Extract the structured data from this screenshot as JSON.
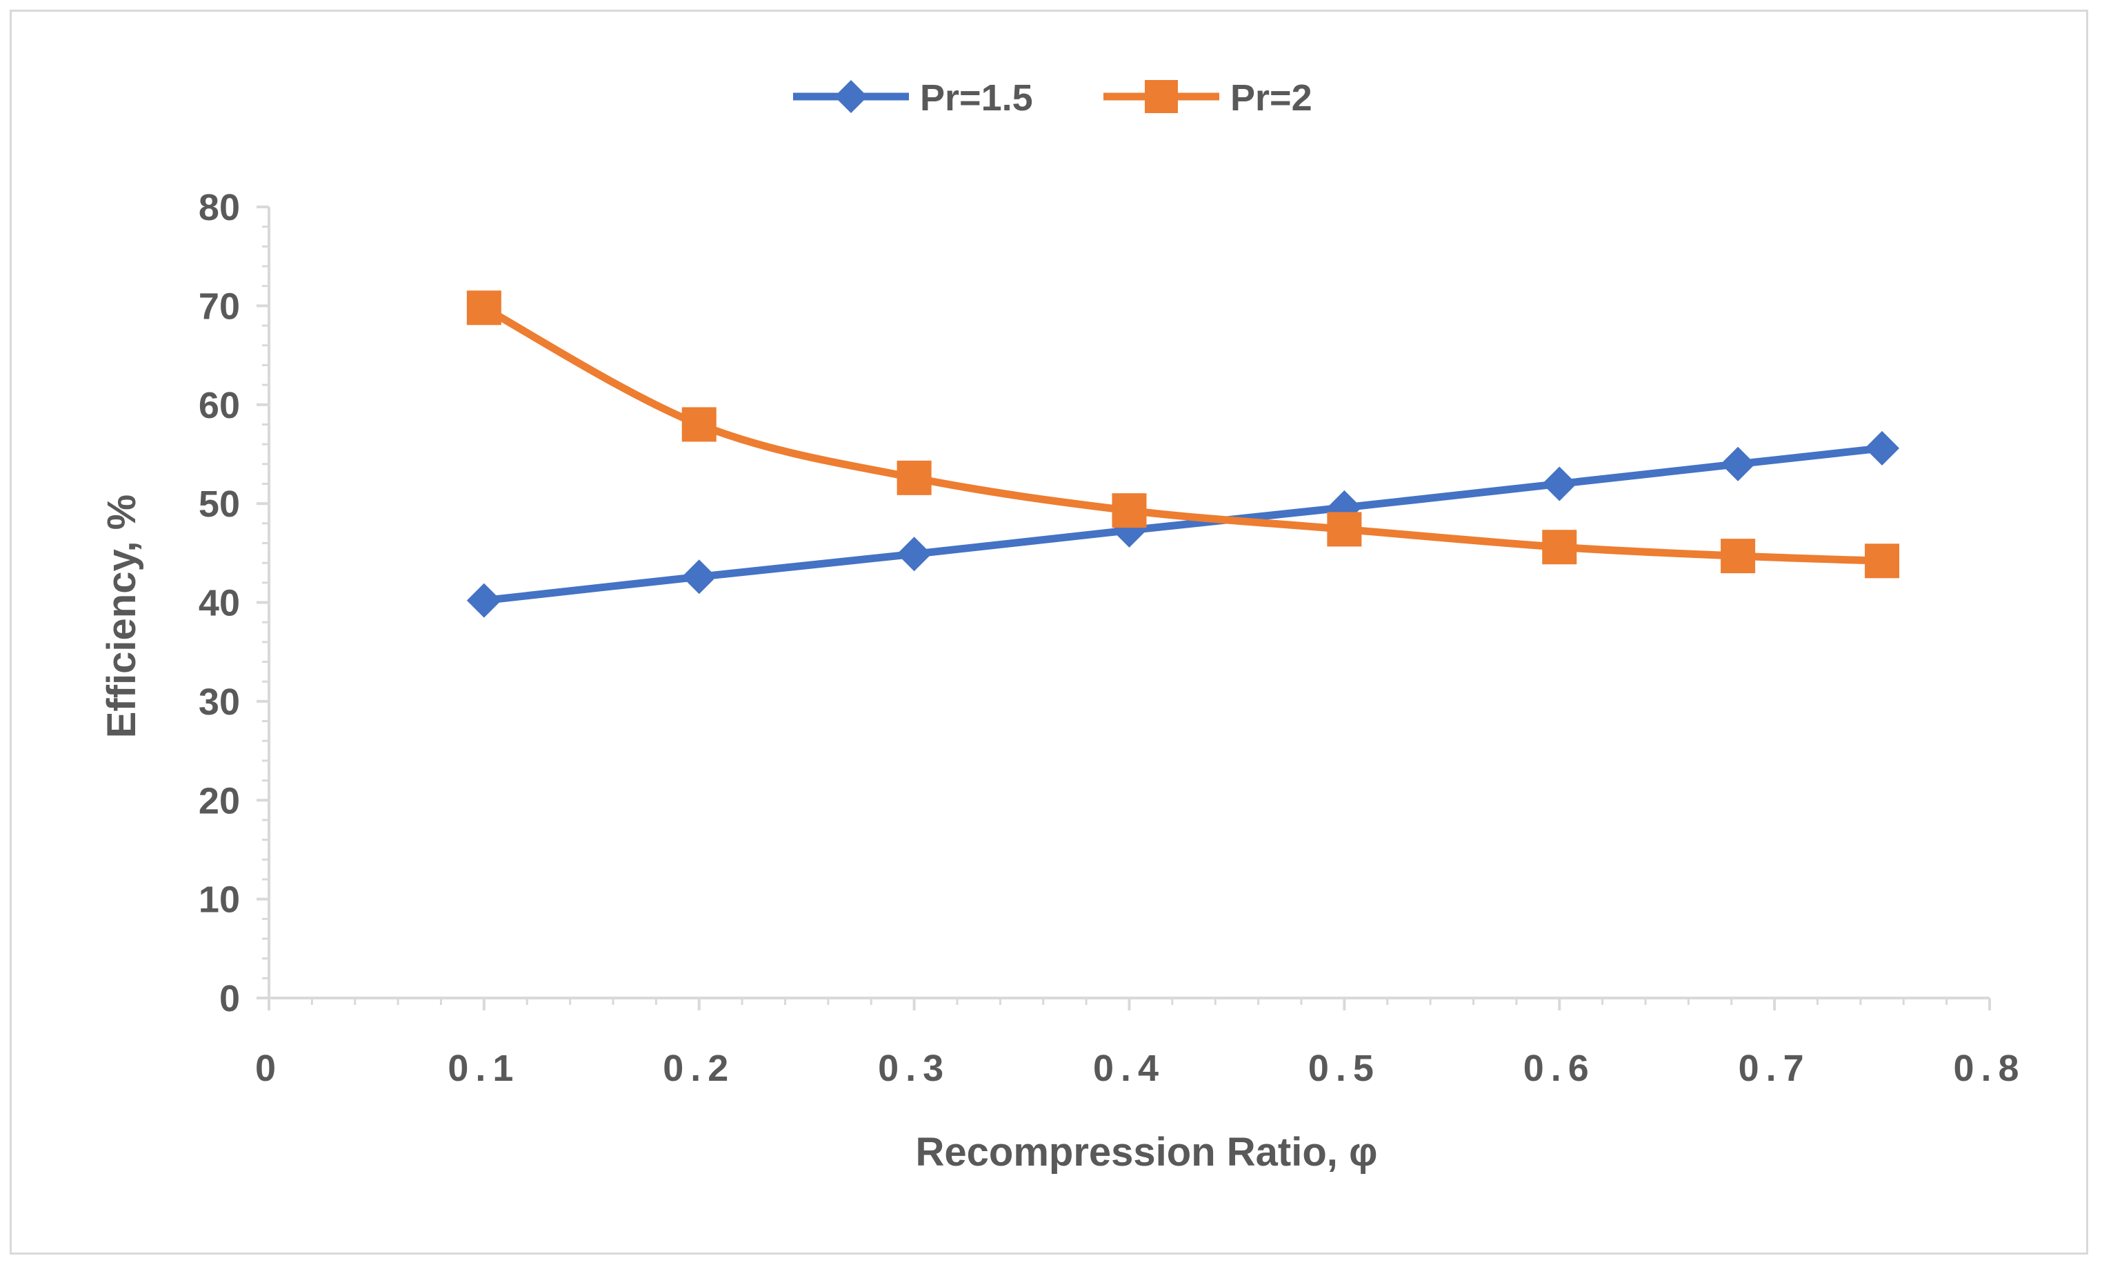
{
  "chart_data": {
    "type": "line",
    "xlabel": "Recompression Ratio, φ",
    "ylabel": "Efficiency, %",
    "xlim": [
      0,
      0.8
    ],
    "ylim": [
      0,
      80
    ],
    "x_ticks": [
      "0",
      "0.1",
      "0.2",
      "0.3",
      "0.4",
      "0.5",
      "0.6",
      "0.7",
      "0.8"
    ],
    "y_ticks": [
      "0",
      "10",
      "20",
      "30",
      "40",
      "50",
      "60",
      "70",
      "80"
    ],
    "grid": false,
    "legend_position": "top",
    "series": [
      {
        "name": "Pr=1.5",
        "color": "#4472c4",
        "marker": "diamond",
        "x": [
          0.1,
          0.2,
          0.3,
          0.4,
          0.5,
          0.6,
          0.683,
          0.75
        ],
        "y": [
          40.2,
          42.6,
          44.9,
          47.3,
          49.6,
          52.0,
          54.0,
          55.6
        ]
      },
      {
        "name": "Pr=2",
        "color": "#ed7d31",
        "marker": "square",
        "x": [
          0.1,
          0.2,
          0.3,
          0.4,
          0.5,
          0.6,
          0.683,
          0.75
        ],
        "y": [
          69.8,
          58.0,
          52.6,
          49.3,
          47.4,
          45.6,
          44.7,
          44.2
        ]
      }
    ]
  }
}
